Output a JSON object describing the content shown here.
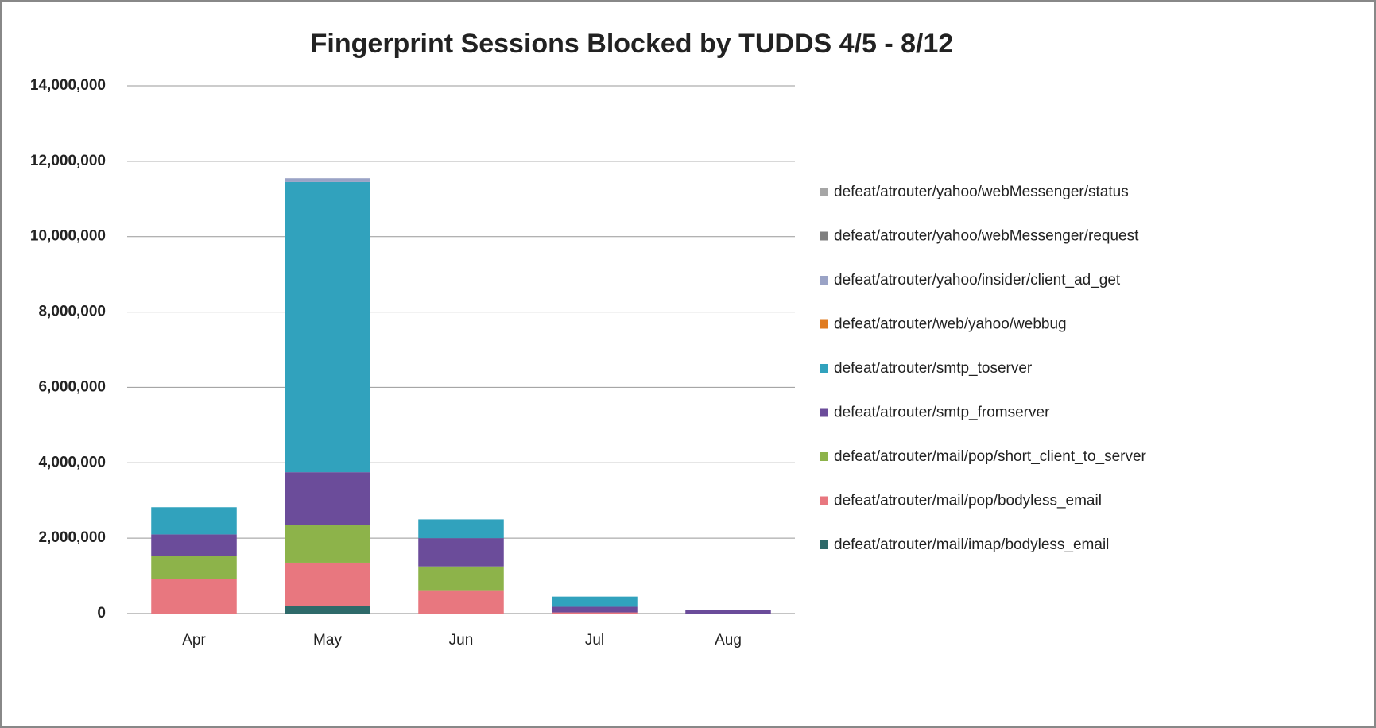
{
  "chart_data": {
    "type": "bar",
    "stacked": true,
    "title": "Fingerprint Sessions Blocked by TUDDS 4/5 - 8/12",
    "categories": [
      "Apr",
      "May",
      "Jun",
      "Jul",
      "Aug"
    ],
    "series": [
      {
        "name": "defeat/atrouter/yahoo/webMessenger/status",
        "color": "#a6a6a6",
        "values": [
          0,
          0,
          0,
          0,
          0
        ]
      },
      {
        "name": "defeat/atrouter/yahoo/webMessenger/request",
        "color": "#7f7f7f",
        "values": [
          0,
          0,
          0,
          0,
          0
        ]
      },
      {
        "name": "defeat/atrouter/yahoo/insider/client_ad_get",
        "color": "#9aa3c6",
        "values": [
          0,
          100000,
          0,
          0,
          0
        ]
      },
      {
        "name": "defeat/atrouter/web/yahoo/webbug",
        "color": "#e07b1f",
        "values": [
          0,
          0,
          0,
          0,
          0
        ]
      },
      {
        "name": "defeat/atrouter/smtp_toserver",
        "color": "#31a2bd",
        "values": [
          720000,
          7700000,
          500000,
          270000,
          0
        ]
      },
      {
        "name": "defeat/atrouter/smtp_fromserver",
        "color": "#6b4c9a",
        "values": [
          580000,
          1400000,
          750000,
          150000,
          100000
        ]
      },
      {
        "name": "defeat/atrouter/mail/pop/short_client_to_server",
        "color": "#8db34a",
        "values": [
          600000,
          1000000,
          630000,
          0,
          0
        ]
      },
      {
        "name": "defeat/atrouter/mail/pop/bodyless_email",
        "color": "#e8777f",
        "values": [
          920000,
          1150000,
          620000,
          30000,
          0
        ]
      },
      {
        "name": "defeat/atrouter/mail/imap/bodyless_email",
        "color": "#2e6a6a",
        "values": [
          0,
          200000,
          0,
          0,
          0
        ]
      }
    ],
    "ylim": [
      0,
      14000000
    ],
    "yticks": [
      0,
      {
        "value": 2000000,
        "label": "2,000,000"
      },
      {
        "value": 4000000,
        "label": "4,000,000"
      },
      {
        "value": 6000000,
        "label": "6,000,000"
      },
      {
        "value": 8000000,
        "label": "8,000,000"
      },
      {
        "value": 10000000,
        "label": "10,000,000"
      },
      {
        "value": 12000000,
        "label": "12,000,000"
      },
      {
        "value": 14000000,
        "label": "14,000,000"
      }
    ],
    "grid": true,
    "legend": "right"
  }
}
